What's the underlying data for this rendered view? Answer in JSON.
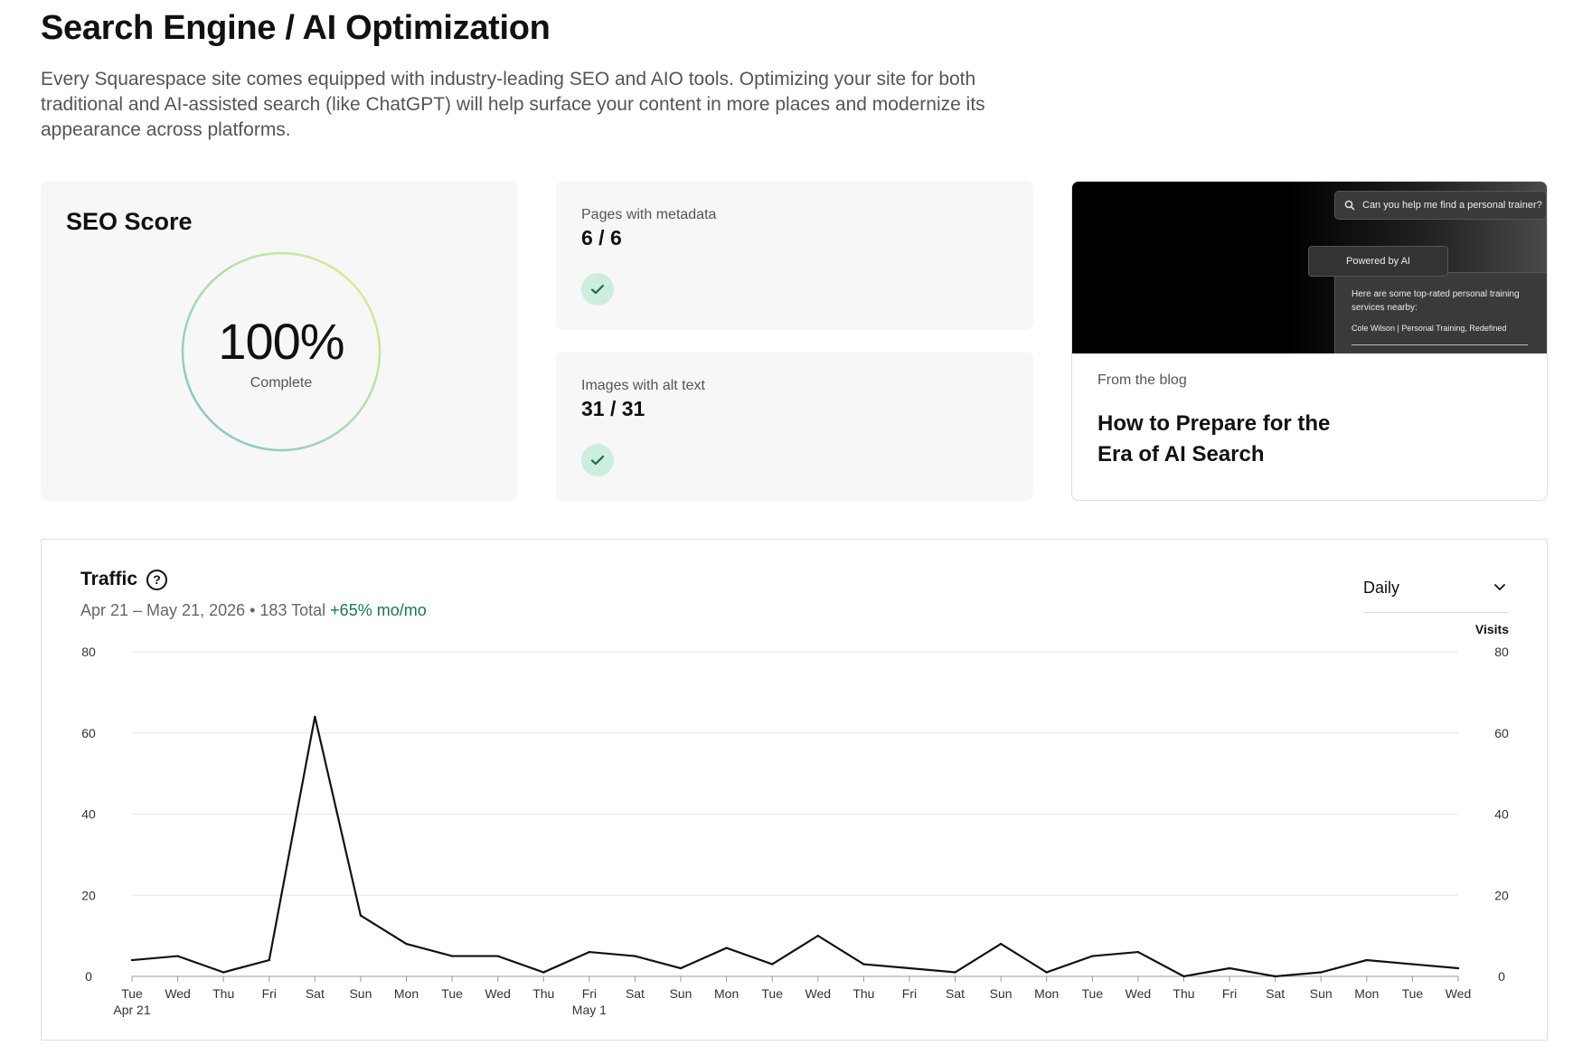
{
  "page": {
    "title": "Search Engine / AI Optimization",
    "description": "Every Squarespace site comes equipped with industry-leading SEO and AIO tools. Optimizing your site for both traditional and AI-assisted search (like ChatGPT) will help surface your content in more places and modernize its appearance across platforms."
  },
  "seo": {
    "title": "SEO Score",
    "value": "100%",
    "sublabel": "Complete",
    "score": 1.0
  },
  "metrics": [
    {
      "label": "Pages with metadata",
      "value": "6 / 6"
    },
    {
      "label": "Images with alt text",
      "value": "31 / 31"
    }
  ],
  "blog": {
    "search_text": "Can you help me find a personal trainer?",
    "powered_text": "Powered by AI",
    "answer_text": "Here are some top-rated personal training services nearby:",
    "answer_result": "Cole Wilson | Personal Training, Redefined",
    "kicker": "From the blog",
    "title": "How to Prepare for the Era of AI Search"
  },
  "traffic": {
    "title": "Traffic",
    "range": "Apr 21 – May 21, 2026 • 183 Total",
    "change": "+65% mo/mo",
    "interval": "Daily"
  },
  "colors": {
    "accent_green": "#16794a",
    "check_bg": "#cdeedd",
    "ring_start": "#7cc3cf",
    "ring_end": "#e2f28a"
  },
  "chart_data": {
    "type": "line",
    "title": "Traffic",
    "ylabel": "Visits",
    "ylim": [
      0,
      80
    ],
    "yticks": [
      0,
      20,
      40,
      60,
      80
    ],
    "grid": true,
    "categories": [
      "Tue",
      "Wed",
      "Thu",
      "Fri",
      "Sat",
      "Sun",
      "Mon",
      "Tue",
      "Wed",
      "Thu",
      "Fri",
      "Sat",
      "Sun",
      "Mon",
      "Tue",
      "Wed",
      "Thu",
      "Fri",
      "Sat",
      "Sun",
      "Mon",
      "Tue",
      "Wed",
      "Thu",
      "Fri",
      "Sat",
      "Sun",
      "Mon",
      "Tue",
      "Wed"
    ],
    "sublabels": {
      "0": "Apr 21",
      "10": "May 1"
    },
    "series": [
      {
        "name": "Visits",
        "values": [
          4,
          5,
          1,
          4,
          64,
          15,
          8,
          5,
          5,
          1,
          6,
          5,
          2,
          7,
          3,
          10,
          3,
          2,
          1,
          8,
          1,
          5,
          6,
          0,
          2,
          0,
          1,
          4,
          3,
          2
        ]
      }
    ]
  }
}
